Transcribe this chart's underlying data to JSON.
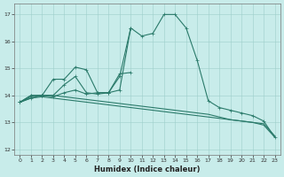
{
  "xlabel": "Humidex (Indice chaleur)",
  "xlim": [
    -0.5,
    23.5
  ],
  "ylim": [
    11.8,
    17.4
  ],
  "yticks": [
    12,
    13,
    14,
    15,
    16,
    17
  ],
  "xticks": [
    0,
    1,
    2,
    3,
    4,
    5,
    6,
    7,
    8,
    9,
    10,
    11,
    12,
    13,
    14,
    15,
    16,
    17,
    18,
    19,
    20,
    21,
    22,
    23
  ],
  "bg_color": "#c8ecea",
  "line_color": "#2a7a6a",
  "lines": [
    {
      "x": [
        0,
        1,
        2,
        3,
        4,
        5,
        6,
        7,
        8,
        9,
        10,
        11,
        12,
        13,
        14,
        15,
        16,
        17,
        18,
        19,
        20,
        21,
        22,
        23
      ],
      "y": [
        13.75,
        14.0,
        14.0,
        13.95,
        14.1,
        14.2,
        14.05,
        14.1,
        14.1,
        14.2,
        16.5,
        16.2,
        16.3,
        17.0,
        17.0,
        16.5,
        15.3,
        13.8,
        13.55,
        13.45,
        13.35,
        13.25,
        13.05,
        12.45
      ],
      "marker": "+"
    },
    {
      "x": [
        0,
        1,
        2,
        3,
        4,
        5,
        6,
        7,
        8,
        9,
        10
      ],
      "y": [
        13.75,
        14.0,
        14.0,
        14.6,
        14.6,
        15.05,
        14.95,
        14.1,
        14.1,
        14.8,
        14.85
      ],
      "marker": "+"
    },
    {
      "x": [
        0,
        1,
        2,
        3,
        4,
        5,
        6,
        7,
        8,
        9,
        10
      ],
      "y": [
        13.75,
        13.9,
        14.0,
        14.0,
        14.4,
        14.7,
        14.1,
        14.05,
        14.1,
        14.7,
        16.5
      ],
      "marker": "+"
    },
    {
      "x": [
        0,
        1,
        2,
        3,
        4,
        5,
        6,
        7,
        8,
        9,
        10,
        11,
        12,
        13,
        14,
        15,
        16,
        17,
        18,
        19,
        20,
        21,
        22,
        23
      ],
      "y": [
        13.75,
        13.9,
        13.95,
        13.9,
        13.85,
        13.8,
        13.75,
        13.7,
        13.65,
        13.6,
        13.55,
        13.5,
        13.45,
        13.4,
        13.35,
        13.3,
        13.25,
        13.2,
        13.15,
        13.1,
        13.05,
        13.0,
        12.9,
        12.45
      ],
      "marker": null
    },
    {
      "x": [
        0,
        1,
        2,
        3,
        4,
        5,
        6,
        7,
        8,
        9,
        10,
        11,
        12,
        13,
        14,
        15,
        16,
        17,
        18,
        19,
        20,
        21,
        22,
        23
      ],
      "y": [
        13.75,
        13.95,
        14.0,
        14.0,
        13.95,
        13.9,
        13.85,
        13.8,
        13.75,
        13.7,
        13.65,
        13.6,
        13.55,
        13.5,
        13.45,
        13.4,
        13.35,
        13.3,
        13.2,
        13.1,
        13.05,
        13.0,
        12.95,
        12.5
      ],
      "marker": null
    }
  ]
}
